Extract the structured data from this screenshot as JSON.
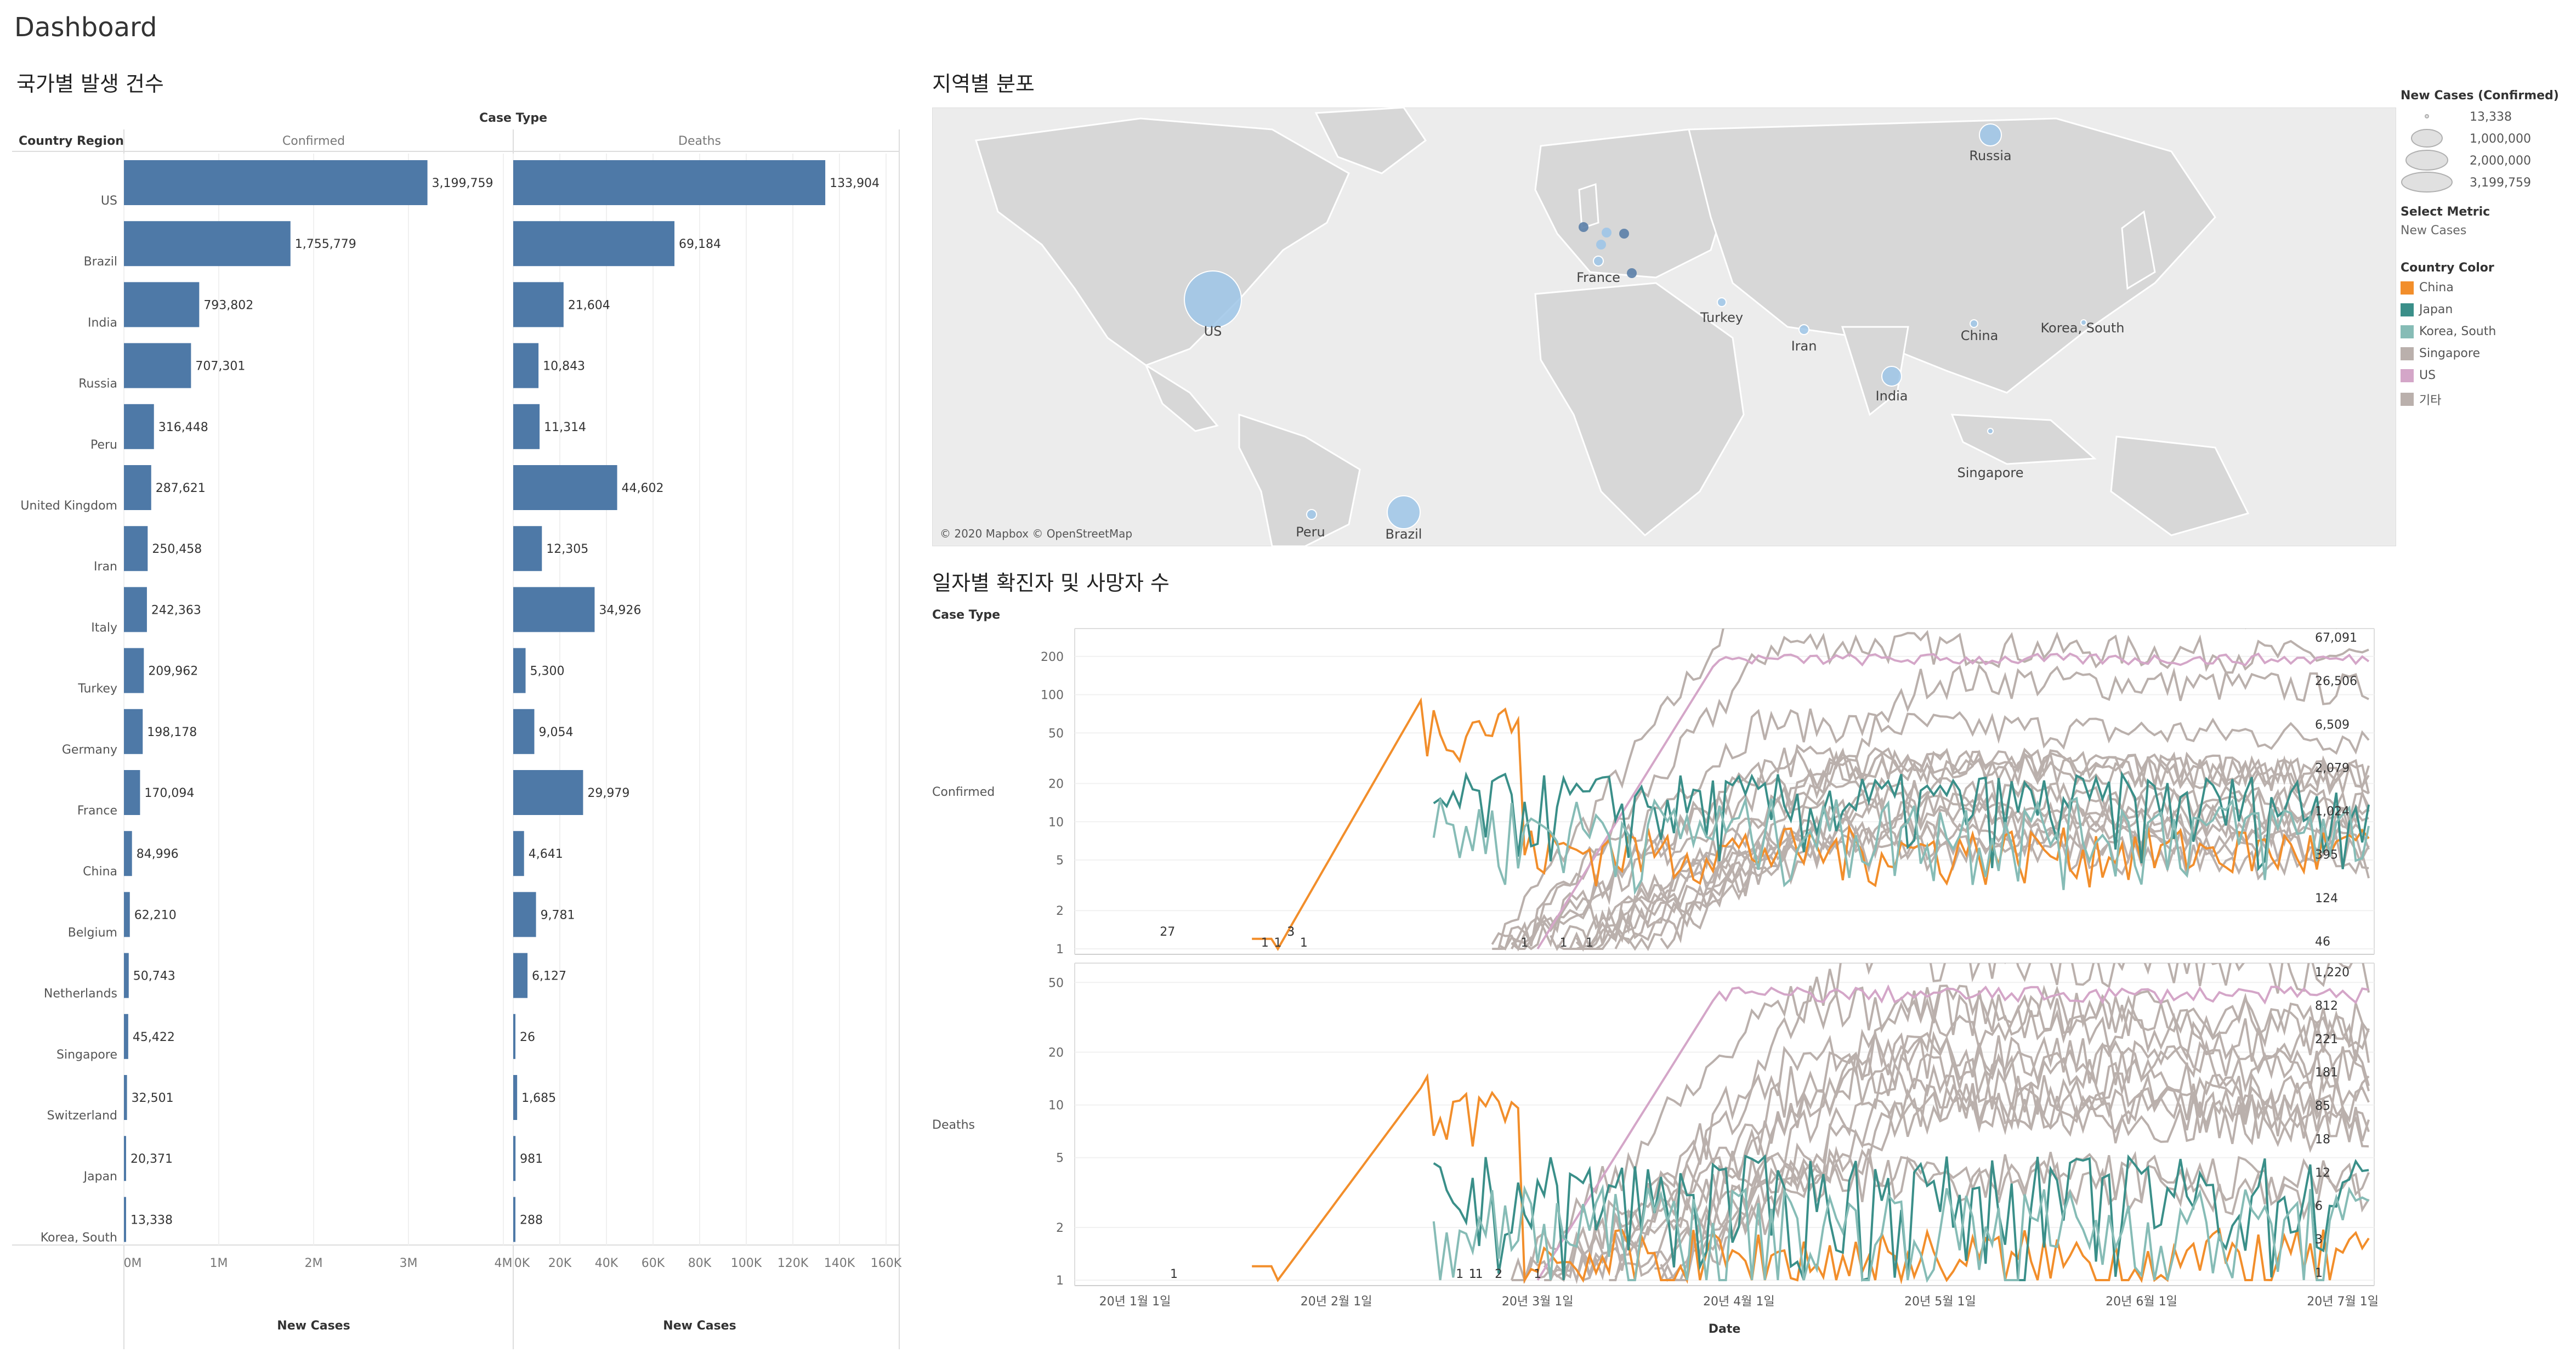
{
  "dashboard": {
    "title": "Dashboard",
    "bar_section_title": "국가별 발생 건수",
    "map_section_title": "지역별 분포",
    "line_section_title": "일자별 확진자 및 사망자 수"
  },
  "legend": {
    "size_title": "New Cases (Confirmed)",
    "size_items": [
      "13,338",
      "1,000,000",
      "2,000,000",
      "3,199,759"
    ],
    "metric_title": "Select Metric",
    "metric_value": "New Cases",
    "color_title": "Country Color",
    "color_items": [
      {
        "label": "China",
        "color": "#f28e2b"
      },
      {
        "label": "Japan",
        "color": "#3a8f89"
      },
      {
        "label": "Korea, South",
        "color": "#86bcb6"
      },
      {
        "label": "Singapore",
        "color": "#bab0ac"
      },
      {
        "label": "US",
        "color": "#d4a6c8"
      },
      {
        "label": "기타",
        "color": "#bab0ac"
      }
    ]
  },
  "map": {
    "attribution": "© 2020 Mapbox © OpenStreetMap",
    "labels": [
      "Russia",
      "France",
      "US",
      "Turkey",
      "Iran",
      "China",
      "Korea, South",
      "India",
      "Singapore",
      "Peru",
      "Brazil"
    ]
  },
  "chart_data": [
    {
      "type": "bar",
      "title": "국가별 발생 건수",
      "header_label": "Case Type",
      "row_header": "Country Region",
      "categories": [
        "US",
        "Brazil",
        "India",
        "Russia",
        "Peru",
        "United Kingdom",
        "Iran",
        "Italy",
        "Turkey",
        "Germany",
        "France",
        "China",
        "Belgium",
        "Netherlands",
        "Singapore",
        "Switzerland",
        "Japan",
        "Korea, South"
      ],
      "series": [
        {
          "name": "Confirmed",
          "values": [
            3199759,
            1755779,
            793802,
            707301,
            316448,
            287621,
            250458,
            242363,
            209962,
            198178,
            170094,
            84996,
            62210,
            50743,
            45422,
            32501,
            20371,
            13338
          ],
          "labels": [
            "3,199,759",
            "1,755,779",
            "793,802",
            "707,301",
            "316,448",
            "287,621",
            "250,458",
            "242,363",
            "209,962",
            "198,178",
            "170,094",
            "84,996",
            "62,210",
            "50,743",
            "45,422",
            "32,501",
            "20,371",
            "13,338"
          ],
          "xlim": [
            0,
            4000000
          ],
          "ticks": [
            "0M",
            "1M",
            "2M",
            "3M",
            "4M"
          ],
          "xlabel": "New Cases"
        },
        {
          "name": "Deaths",
          "values": [
            133904,
            69184,
            21604,
            10843,
            11314,
            44602,
            12305,
            34926,
            5300,
            9054,
            29979,
            4641,
            9781,
            6127,
            26,
            1685,
            981,
            288
          ],
          "labels": [
            "133,904",
            "69,184",
            "21,604",
            "10,843",
            "11,314",
            "44,602",
            "12,305",
            "34,926",
            "5,300",
            "9,054",
            "29,979",
            "4,641",
            "9,781",
            "6,127",
            "26",
            "1,685",
            "981",
            "288"
          ],
          "xlim": [
            0,
            160000
          ],
          "ticks": [
            "0K",
            "20K",
            "40K",
            "60K",
            "80K",
            "100K",
            "120K",
            "140K",
            "160K"
          ],
          "xlabel": "New Cases"
        }
      ],
      "color": "#4e79a7"
    },
    {
      "type": "line",
      "title": "일자별 확진자 및 사망자 수",
      "header_label": "Case Type",
      "xlabel": "Date",
      "x_ticks": [
        "20년 1월 1일",
        "20년 2월 1일",
        "20년 3월 1일",
        "20년 4월 1일",
        "20년 5월 1일",
        "20년 6월 1일",
        "20년 7월 1일"
      ],
      "y_scale": "log",
      "panels": [
        {
          "name": "Confirmed",
          "y_ticks": [
            "200",
            "100",
            "50",
            "20",
            "10",
            "5",
            "2",
            "1"
          ],
          "end_labels": [
            "67,091",
            "26,506",
            "6,509",
            "2,079",
            "1,024",
            "395",
            "124",
            "46"
          ],
          "point_labels": [
            "27",
            "3",
            "3",
            "1",
            "1",
            "1",
            "1",
            "1",
            "1"
          ]
        },
        {
          "name": "Deaths",
          "y_ticks": [
            "50",
            "20",
            "10",
            "5",
            "2",
            "1"
          ],
          "end_labels": [
            "1,220",
            "812",
            "221",
            "181",
            "85",
            "18",
            "12",
            "6",
            "3",
            "1"
          ],
          "point_labels": [
            "1",
            "1",
            "1",
            "2",
            "1",
            "1",
            "1"
          ]
        }
      ],
      "grid": true
    }
  ]
}
